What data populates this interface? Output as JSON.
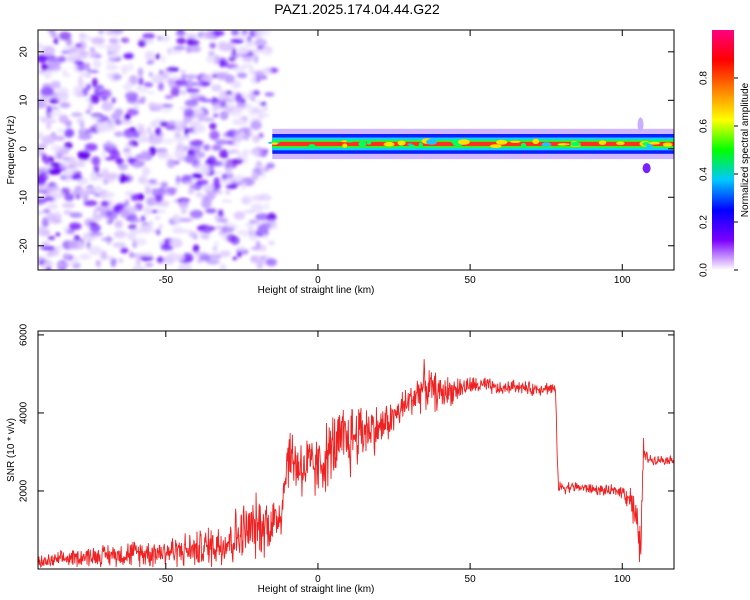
{
  "figure_title": "PAZ1.2025.174.04.44.G22",
  "chart_data": [
    {
      "type": "heatmap",
      "xlabel": "Height of straight line (km)",
      "ylabel": "Frequency (Hz)",
      "xlim": [
        -92,
        117
      ],
      "ylim": [
        -25,
        24.5
      ],
      "x_ticks": [
        -50,
        0,
        50,
        100
      ],
      "y_ticks": [
        -20,
        -10,
        0,
        10,
        20
      ],
      "grid": false,
      "colorbar": {
        "label": "Normalized spectral amplitude",
        "range": [
          0,
          1
        ],
        "ticks": [
          0.0,
          0.2,
          0.4,
          0.6,
          0.8
        ],
        "colormap": [
          "#ffffff",
          "#7a00ff",
          "#0000ff",
          "#00c8ff",
          "#00ff00",
          "#ffff00",
          "#ff8000",
          "#ff0000",
          "#ff0080"
        ]
      },
      "regions": [
        {
          "x_range": [
            -92,
            -15
          ],
          "freq_range": [
            -25,
            24.5
          ],
          "amplitude": 0.08,
          "description": "noise"
        },
        {
          "x_range": [
            -15,
            117
          ],
          "freq_center": 1,
          "freq_halfwidth": 1.2,
          "amplitude": 0.85,
          "description": "carrier line"
        }
      ]
    },
    {
      "type": "line",
      "xlabel": "Height of straight line (km)",
      "ylabel": "SNR (10 * v/v)",
      "xlim": [
        -92,
        117
      ],
      "ylim": [
        0,
        6100
      ],
      "x_ticks": [
        -50,
        0,
        50,
        100
      ],
      "y_ticks": [
        2000,
        4000,
        6000
      ],
      "grid": false,
      "series_color": "#ee2222",
      "trend_x": [
        -92,
        -80,
        -60,
        -40,
        -30,
        -25,
        -20,
        -14,
        -12,
        -10,
        -5,
        0,
        5,
        10,
        15,
        20,
        25,
        30,
        35,
        40,
        45,
        50,
        55,
        60,
        65,
        70,
        75,
        78,
        79,
        85,
        90,
        95,
        100,
        103,
        105,
        106,
        107,
        108,
        110,
        117
      ],
      "trend_y": [
        150,
        300,
        400,
        500,
        700,
        900,
        1100,
        1200,
        1500,
        2900,
        2600,
        2600,
        3100,
        3300,
        3600,
        3600,
        3900,
        4300,
        4700,
        4500,
        4600,
        4700,
        4700,
        4600,
        4700,
        4600,
        4650,
        4600,
        2100,
        2100,
        2050,
        2000,
        2000,
        1800,
        1000,
        500,
        3000,
        2850,
        2800,
        2800
      ],
      "noise_amp": [
        150,
        200,
        300,
        400,
        600,
        700,
        700,
        700,
        600,
        700,
        800,
        700,
        800,
        900,
        700,
        500,
        400,
        400,
        500,
        400,
        300,
        200,
        200,
        150,
        150,
        150,
        150,
        150,
        150,
        120,
        120,
        120,
        150,
        400,
        500,
        500,
        400,
        150,
        100,
        100
      ]
    }
  ]
}
